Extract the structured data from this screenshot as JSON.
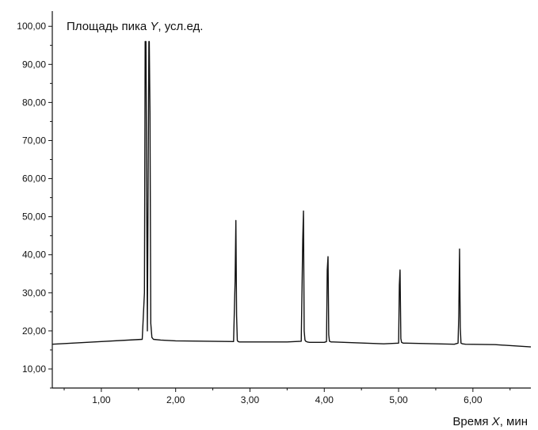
{
  "chart_data": {
    "type": "line",
    "ylabel": {
      "prefix": "Площадь пика ",
      "var": "Y",
      "suffix": ", усл.ед."
    },
    "xlabel": {
      "prefix": "Время ",
      "var": "X",
      "suffix": ", мин"
    },
    "xlim": [
      0.34,
      6.78
    ],
    "ylim": [
      5.0,
      104.0
    ],
    "x_ticks": [
      "1,00",
      "2,00",
      "3,00",
      "4,00",
      "5,00",
      "6,00"
    ],
    "x_tick_values": [
      1,
      2,
      3,
      4,
      5,
      6
    ],
    "y_ticks": [
      "10,00",
      "20,00",
      "30,00",
      "40,00",
      "50,00",
      "60,00",
      "70,00",
      "80,00",
      "90,00",
      "100,00"
    ],
    "y_tick_values": [
      10,
      20,
      30,
      40,
      50,
      60,
      70,
      80,
      90,
      100
    ],
    "series": [
      {
        "x": [
          0.34,
          1.0,
          1.55,
          1.58,
          1.59,
          1.6,
          1.62,
          1.64,
          1.645,
          1.655,
          1.665,
          1.68,
          1.7,
          1.8,
          2.0,
          2.78,
          2.8,
          2.81,
          2.82,
          2.83,
          2.84,
          2.86,
          2.9,
          3.5,
          3.69,
          3.71,
          3.72,
          3.73,
          3.74,
          3.75,
          3.77,
          3.8,
          4.0,
          4.03,
          4.04,
          4.05,
          4.06,
          4.07,
          4.09,
          4.12,
          4.8,
          5.0,
          5.01,
          5.02,
          5.03,
          5.04,
          5.06,
          5.1,
          5.75,
          5.8,
          5.81,
          5.82,
          5.83,
          5.84,
          5.86,
          5.9,
          6.3,
          6.78
        ],
        "y": [
          16.5,
          17.2,
          17.8,
          30,
          96,
          96,
          20,
          96,
          96,
          77,
          22,
          18.3,
          17.8,
          17.6,
          17.4,
          17.2,
          33,
          49,
          24,
          17.5,
          17.2,
          17.1,
          17.1,
          17.1,
          17.3,
          44,
          51.5,
          20,
          17.6,
          17.3,
          17.1,
          17.0,
          17.0,
          17.2,
          36,
          39.5,
          19,
          17.3,
          17.1,
          17.1,
          16.6,
          16.8,
          32,
          36,
          18,
          17.0,
          16.8,
          16.8,
          16.5,
          16.8,
          24,
          41.5,
          21,
          16.8,
          16.6,
          16.5,
          16.4,
          15.8
        ]
      }
    ],
    "grid": false,
    "line_color": "#111111"
  }
}
